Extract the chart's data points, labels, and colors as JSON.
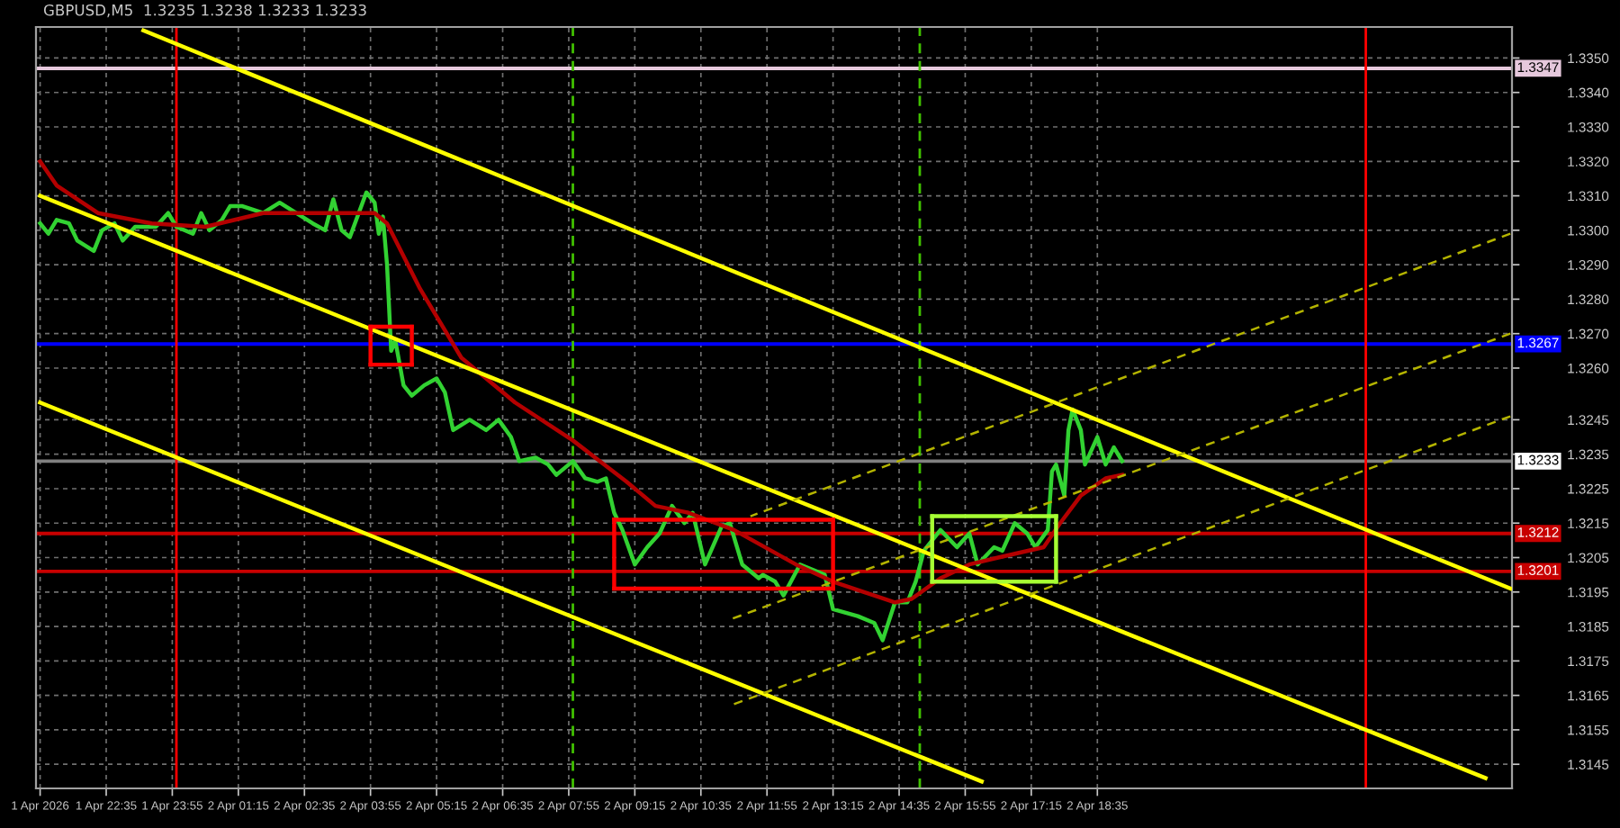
{
  "chart_data": {
    "type": "line",
    "title": "GBPUSD,M5  1.3235 1.3238 1.3233 1.3233",
    "xlim": [
      "2026-04-01T21:10",
      "2026-04-03T02:57"
    ],
    "ylim": [
      1.3138,
      1.3359
    ],
    "xticks": [
      {
        "value": "2026-04-01T21:15",
        "label": "1 Apr 2026"
      },
      {
        "value": "2026-04-01T22:35",
        "label": "1 Apr 22:35"
      },
      {
        "value": "2026-04-01T23:55",
        "label": "1 Apr 23:55"
      },
      {
        "value": "2026-04-02T01:15",
        "label": "2 Apr 01:15"
      },
      {
        "value": "2026-04-02T02:35",
        "label": "2 Apr 02:35"
      },
      {
        "value": "2026-04-02T03:55",
        "label": "2 Apr 03:55"
      },
      {
        "value": "2026-04-02T05:15",
        "label": "2 Apr 05:15"
      },
      {
        "value": "2026-04-02T06:35",
        "label": "2 Apr 06:35"
      },
      {
        "value": "2026-04-02T07:55",
        "label": "2 Apr 07:55"
      },
      {
        "value": "2026-04-02T09:15",
        "label": "2 Apr 09:15"
      },
      {
        "value": "2026-04-02T10:35",
        "label": "2 Apr 10:35"
      },
      {
        "value": "2026-04-02T11:55",
        "label": "2 Apr 11:55"
      },
      {
        "value": "2026-04-02T13:15",
        "label": "2 Apr 13:15"
      },
      {
        "value": "2026-04-02T14:35",
        "label": "2 Apr 14:35"
      },
      {
        "value": "2026-04-02T15:55",
        "label": "2 Apr 15:55"
      },
      {
        "value": "2026-04-02T17:15",
        "label": "2 Apr 17:15"
      },
      {
        "value": "2026-04-02T18:35",
        "label": "2 Apr 18:35"
      }
    ],
    "yticks": [
      {
        "value": 1.335,
        "label": "1.3350"
      },
      {
        "value": 1.334,
        "label": "1.3340"
      },
      {
        "value": 1.333,
        "label": "1.3330"
      },
      {
        "value": 1.332,
        "label": "1.3320"
      },
      {
        "value": 1.331,
        "label": "1.3310"
      },
      {
        "value": 1.33,
        "label": "1.3300"
      },
      {
        "value": 1.329,
        "label": "1.3290"
      },
      {
        "value": 1.328,
        "label": "1.3280"
      },
      {
        "value": 1.327,
        "label": "1.3270"
      },
      {
        "value": 1.326,
        "label": "1.3260"
      },
      {
        "value": 1.3245,
        "label": "1.3245"
      },
      {
        "value": 1.3235,
        "label": "1.3235"
      },
      {
        "value": 1.3225,
        "label": "1.3225"
      },
      {
        "value": 1.3215,
        "label": "1.3215"
      },
      {
        "value": 1.3205,
        "label": "1.3205"
      },
      {
        "value": 1.3195,
        "label": "1.3195"
      },
      {
        "value": 1.3185,
        "label": "1.3185"
      },
      {
        "value": 1.3175,
        "label": "1.3175"
      },
      {
        "value": 1.3165,
        "label": "1.3165"
      },
      {
        "value": 1.3155,
        "label": "1.3155"
      },
      {
        "value": 1.3145,
        "label": "1.3145"
      }
    ],
    "grid": true,
    "ref_lines": [
      {
        "axis": "y",
        "value": 1.3347,
        "label": "1.3347",
        "color": "#e6c8dc"
      },
      {
        "axis": "y",
        "value": 1.3267,
        "label": "1.3267",
        "color": "#0000ff"
      },
      {
        "axis": "y",
        "value": 1.3233,
        "label": "1.3233",
        "color": "#808080"
      },
      {
        "axis": "y",
        "value": 1.3212,
        "label": "1.3212",
        "color": "#c80000"
      },
      {
        "axis": "y",
        "value": 1.3201,
        "label": "1.3201",
        "color": "#c80000"
      },
      {
        "axis": "x",
        "value": "2026-04-02T00:00",
        "color": "#ff0000"
      },
      {
        "axis": "x",
        "value": "2026-04-03T00:00",
        "color": "#ff0000"
      },
      {
        "axis": "x",
        "value": "2026-04-02T08:00",
        "color": "#40c000",
        "line_style": "dashed"
      },
      {
        "axis": "x",
        "value": "2026-04-02T15:00",
        "color": "#40c000",
        "line_style": "dashed"
      }
    ],
    "series": [
      {
        "color": "#32d232",
        "x": [
          "2026-04-01T21:15",
          "2026-04-01T21:25",
          "2026-04-01T21:35",
          "2026-04-01T21:50",
          "2026-04-01T22:00",
          "2026-04-01T22:20",
          "2026-04-01T22:30",
          "2026-04-01T22:45",
          "2026-04-01T22:55",
          "2026-04-01T23:10",
          "2026-04-01T23:35",
          "2026-04-01T23:50",
          "2026-04-02T00:00",
          "2026-04-02T00:20",
          "2026-04-02T00:30",
          "2026-04-02T00:40",
          "2026-04-02T00:55",
          "2026-04-02T01:05",
          "2026-04-02T01:20",
          "2026-04-02T01:45",
          "2026-04-02T02:05",
          "2026-04-02T02:25",
          "2026-04-02T02:45",
          "2026-04-02T03:00",
          "2026-04-02T03:10",
          "2026-04-02T03:20",
          "2026-04-02T03:30",
          "2026-04-02T03:50",
          "2026-04-02T04:00",
          "2026-04-02T04:05",
          "2026-04-02T04:10",
          "2026-04-02T04:15",
          "2026-04-02T04:20",
          "2026-04-02T04:25",
          "2026-04-02T04:35",
          "2026-04-02T04:45",
          "2026-04-02T05:00",
          "2026-04-02T05:15",
          "2026-04-02T05:25",
          "2026-04-02T05:35",
          "2026-04-02T05:55",
          "2026-04-02T06:15",
          "2026-04-02T06:30",
          "2026-04-02T06:45",
          "2026-04-02T06:55",
          "2026-04-02T07:15",
          "2026-04-02T07:30",
          "2026-04-02T07:40",
          "2026-04-02T08:00",
          "2026-04-02T08:15",
          "2026-04-02T08:30",
          "2026-04-02T08:40",
          "2026-04-02T08:50",
          "2026-04-02T09:00",
          "2026-04-02T09:15",
          "2026-04-02T09:30",
          "2026-04-02T09:45",
          "2026-04-02T10:00",
          "2026-04-02T10:15",
          "2026-04-02T10:25",
          "2026-04-02T10:40",
          "2026-04-02T11:00",
          "2026-04-02T11:10",
          "2026-04-02T11:25",
          "2026-04-02T11:45",
          "2026-04-02T11:50",
          "2026-04-02T12:05",
          "2026-04-02T12:15",
          "2026-04-02T12:35",
          "2026-04-02T13:05",
          "2026-04-02T13:15",
          "2026-04-02T13:45",
          "2026-04-02T14:05",
          "2026-04-02T14:15",
          "2026-04-02T14:30",
          "2026-04-02T14:45",
          "2026-04-02T14:55",
          "2026-04-02T15:05",
          "2026-04-02T15:25",
          "2026-04-02T15:45",
          "2026-04-02T16:00",
          "2026-04-02T16:10",
          "2026-04-02T16:30",
          "2026-04-02T16:40",
          "2026-04-02T16:55",
          "2026-04-02T17:10",
          "2026-04-02T17:20",
          "2026-04-02T17:35",
          "2026-04-02T17:40",
          "2026-04-02T17:45",
          "2026-04-02T17:55",
          "2026-04-02T18:00",
          "2026-04-02T18:05",
          "2026-04-02T18:15",
          "2026-04-02T18:20",
          "2026-04-02T18:35",
          "2026-04-02T18:45",
          "2026-04-02T18:55",
          "2026-04-02T19:05"
        ],
        "values": [
          1.3302,
          1.3299,
          1.3303,
          1.3302,
          1.3297,
          1.3294,
          1.33,
          1.3302,
          1.3297,
          1.3301,
          1.3301,
          1.3305,
          1.3301,
          1.3299,
          1.3305,
          1.33,
          1.3303,
          1.3307,
          1.3307,
          1.3305,
          1.3308,
          1.3305,
          1.3302,
          1.33,
          1.3309,
          1.33,
          1.3298,
          1.3311,
          1.3308,
          1.3299,
          1.3304,
          1.329,
          1.3265,
          1.3268,
          1.3255,
          1.3252,
          1.3255,
          1.3257,
          1.3253,
          1.3242,
          1.3245,
          1.3242,
          1.3245,
          1.324,
          1.3233,
          1.3234,
          1.3232,
          1.3229,
          1.3233,
          1.3228,
          1.3227,
          1.3228,
          1.3218,
          1.3213,
          1.3203,
          1.3208,
          1.3212,
          1.322,
          1.3215,
          1.3218,
          1.3203,
          1.3214,
          1.3215,
          1.3203,
          1.3199,
          1.32,
          1.3198,
          1.3194,
          1.3203,
          1.32,
          1.319,
          1.3188,
          1.3186,
          1.3181,
          1.3192,
          1.3192,
          1.3198,
          1.3207,
          1.3213,
          1.3208,
          1.3212,
          1.3203,
          1.3208,
          1.3207,
          1.3215,
          1.3212,
          1.3208,
          1.3213,
          1.323,
          1.3232,
          1.3223,
          1.3242,
          1.3248,
          1.3242,
          1.3232,
          1.324,
          1.3232,
          1.3237,
          1.3233
        ]
      },
      {
        "color": "#b40000",
        "x": [
          "2026-04-01T21:15",
          "2026-04-01T21:35",
          "2026-04-01T22:25",
          "2026-04-01T23:30",
          "2026-04-02T00:35",
          "2026-04-02T01:45",
          "2026-04-02T02:50",
          "2026-04-02T04:00",
          "2026-04-02T04:15",
          "2026-04-02T04:55",
          "2026-04-02T05:45",
          "2026-04-02T06:50",
          "2026-04-02T08:00",
          "2026-04-02T09:05",
          "2026-04-02T09:40",
          "2026-04-02T10:20",
          "2026-04-02T11:15",
          "2026-04-02T12:30",
          "2026-04-02T13:15",
          "2026-04-02T14:30",
          "2026-04-02T14:50",
          "2026-04-02T15:25",
          "2026-04-02T16:00",
          "2026-04-02T16:35",
          "2026-04-02T17:30",
          "2026-04-02T17:50",
          "2026-04-02T18:15",
          "2026-04-02T18:45",
          "2026-04-02T19:05"
        ],
        "values": [
          1.332,
          1.3313,
          1.3305,
          1.3302,
          1.3301,
          1.3305,
          1.3305,
          1.3305,
          1.3302,
          1.3283,
          1.3263,
          1.325,
          1.3239,
          1.3227,
          1.322,
          1.3218,
          1.3213,
          1.3203,
          1.3198,
          1.3192,
          1.3193,
          1.3199,
          1.3203,
          1.3205,
          1.3208,
          1.3215,
          1.3223,
          1.3228,
          1.3229
        ]
      },
      {
        "color": "#ffff00",
        "x": [
          "2026-04-01T23:20",
          "2026-04-03T02:55"
        ],
        "values": [
          1.3358,
          1.3196
        ]
      },
      {
        "color": "#ffff00",
        "x": [
          "2026-04-01T21:15",
          "2026-04-03T02:25"
        ],
        "values": [
          1.331,
          1.3141
        ]
      },
      {
        "color": "#ffff00",
        "x": [
          "2026-04-01T21:15",
          "2026-04-02T16:15"
        ],
        "values": [
          1.325,
          1.314
        ]
      },
      {
        "color": "#b4b400",
        "line_style": "dashed",
        "x": [
          "2026-04-02T11:35",
          "2026-04-03T02:55"
        ],
        "values": [
          1.3217,
          1.3299
        ]
      },
      {
        "color": "#b4b400",
        "line_style": "dashed",
        "x": [
          "2026-04-02T11:10",
          "2026-04-03T02:55"
        ],
        "values": [
          1.3187,
          1.327
        ]
      },
      {
        "color": "#b4b400",
        "line_style": "dashed",
        "x": [
          "2026-04-02T11:10",
          "2026-04-03T02:55"
        ],
        "values": [
          1.3162,
          1.3246
        ]
      },
      {
        "color": "#ff0000",
        "x": [
          "2026-04-02T03:55",
          "2026-04-02T04:45"
        ],
        "values": [
          1.3272,
          1.3272
        ]
      },
      {
        "color": "#ff0000",
        "x": [
          "2026-04-02T03:55",
          "2026-04-02T04:45"
        ],
        "values": [
          1.3261,
          1.3261
        ]
      },
      {
        "color": "#ff0000",
        "x": [
          "2026-04-02T03:55",
          "2026-04-02T03:55"
        ],
        "values": [
          1.3272,
          1.3261
        ]
      },
      {
        "color": "#ff0000",
        "x": [
          "2026-04-02T04:45",
          "2026-04-02T04:45"
        ],
        "values": [
          1.3272,
          1.3261
        ]
      },
      {
        "color": "#ff0000",
        "x": [
          "2026-04-02T08:50",
          "2026-04-02T13:15"
        ],
        "values": [
          1.3216,
          1.3216
        ]
      },
      {
        "color": "#ff0000",
        "x": [
          "2026-04-02T08:50",
          "2026-04-02T13:15"
        ],
        "values": [
          1.3196,
          1.3196
        ]
      },
      {
        "color": "#ff0000",
        "x": [
          "2026-04-02T08:50",
          "2026-04-02T08:50"
        ],
        "values": [
          1.3216,
          1.3196
        ]
      },
      {
        "color": "#ff0000",
        "x": [
          "2026-04-02T13:15",
          "2026-04-02T13:15"
        ],
        "values": [
          1.3216,
          1.3196
        ]
      },
      {
        "color": "#a6ff33",
        "x": [
          "2026-04-02T15:15",
          "2026-04-02T17:45"
        ],
        "values": [
          1.3217,
          1.3217
        ]
      },
      {
        "color": "#a6ff33",
        "x": [
          "2026-04-02T15:15",
          "2026-04-02T17:45"
        ],
        "values": [
          1.3198,
          1.3198
        ]
      },
      {
        "color": "#a6ff33",
        "x": [
          "2026-04-02T15:15",
          "2026-04-02T15:15"
        ],
        "values": [
          1.3217,
          1.3198
        ]
      },
      {
        "color": "#a6ff33",
        "x": [
          "2026-04-02T17:45",
          "2026-04-02T17:45"
        ],
        "values": [
          1.3217,
          1.3198
        ]
      }
    ]
  }
}
